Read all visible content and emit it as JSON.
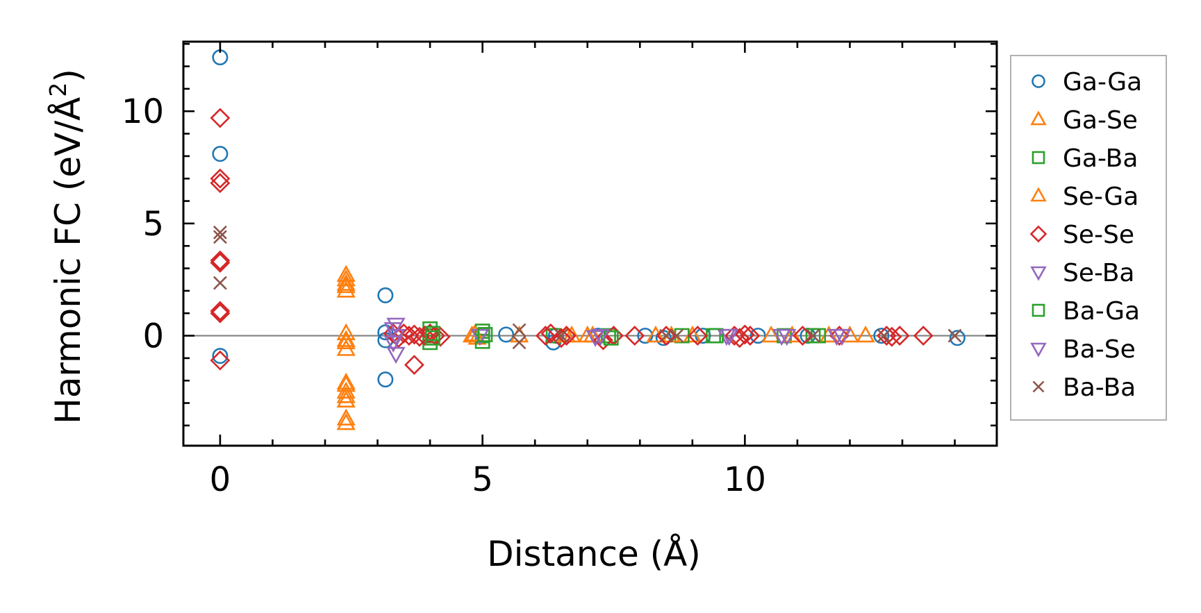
{
  "chart_data": {
    "type": "scatter",
    "title": "",
    "xlabel": "Distance (Å)",
    "ylabel": "Harmonic FC (eV/Å",
    "ylabel_sup": "2",
    "ylabel_close": ")",
    "xlim": [
      -0.7,
      14.8
    ],
    "ylim": [
      -4.9,
      13.1
    ],
    "xticks": [
      0,
      5,
      10
    ],
    "yticks": [
      0,
      5,
      10
    ],
    "x_minor_step": 1,
    "y_minor_step": 1,
    "grid": false,
    "zero_line": true,
    "legend_location": "outside-right",
    "series": [
      {
        "name": "Ga-Ga",
        "marker": "circle",
        "color": "#1f77b4",
        "points": [
          [
            0,
            12.4
          ],
          [
            0,
            8.1
          ],
          [
            0,
            -0.9
          ],
          [
            3.15,
            1.8
          ],
          [
            3.15,
            0.15
          ],
          [
            3.15,
            -0.2
          ],
          [
            3.15,
            -1.95
          ],
          [
            5.45,
            0.05
          ],
          [
            6.35,
            -0.3
          ],
          [
            6.4,
            0.0
          ],
          [
            7.2,
            0.0
          ],
          [
            8.1,
            0.0
          ],
          [
            8.45,
            -0.1
          ],
          [
            9.2,
            0.0
          ],
          [
            10.25,
            0.0
          ],
          [
            11.2,
            0.0
          ],
          [
            12.6,
            0.0
          ],
          [
            14.05,
            -0.1
          ]
        ]
      },
      {
        "name": "Ga-Se",
        "marker": "triangle-up",
        "color": "#ff7f0e",
        "points": [
          [
            2.4,
            2.7
          ],
          [
            2.4,
            2.3
          ],
          [
            2.4,
            2.0
          ],
          [
            2.4,
            0.1
          ],
          [
            2.4,
            -0.3
          ],
          [
            2.4,
            -0.6
          ],
          [
            2.4,
            -2.1
          ],
          [
            2.4,
            -2.5
          ],
          [
            2.4,
            -2.9
          ],
          [
            2.4,
            -3.7
          ],
          [
            2.4,
            -3.9
          ],
          [
            4.8,
            0.0
          ],
          [
            4.9,
            -0.1
          ],
          [
            5.7,
            0.0
          ],
          [
            6.7,
            0.0
          ],
          [
            7.0,
            0.0
          ],
          [
            8.3,
            0.0
          ],
          [
            9.0,
            0.0
          ],
          [
            10.5,
            0.0
          ],
          [
            11.6,
            0.0
          ],
          [
            12.3,
            0.0
          ]
        ]
      },
      {
        "name": "Ga-Ba",
        "marker": "square",
        "color": "#2ca02c",
        "points": [
          [
            4.0,
            0.3
          ],
          [
            4.0,
            0.0
          ],
          [
            4.0,
            -0.3
          ],
          [
            5.0,
            0.2
          ],
          [
            5.0,
            0.0
          ],
          [
            5.0,
            -0.25
          ],
          [
            6.35,
            0.0
          ],
          [
            7.4,
            0.0
          ],
          [
            8.8,
            0.0
          ],
          [
            9.4,
            0.0
          ],
          [
            10.75,
            0.0
          ],
          [
            11.3,
            0.0
          ]
        ]
      },
      {
        "name": "Se-Ga",
        "marker": "triangle-up",
        "color": "#ff7f0e",
        "points": [
          [
            2.4,
            2.5
          ],
          [
            2.4,
            2.2
          ],
          [
            2.4,
            -0.2
          ],
          [
            2.4,
            -2.2
          ],
          [
            2.4,
            -2.7
          ],
          [
            4.85,
            0.05
          ],
          [
            6.6,
            0.0
          ],
          [
            7.1,
            0.0
          ],
          [
            8.6,
            0.0
          ],
          [
            10.9,
            0.0
          ],
          [
            12.0,
            0.0
          ]
        ]
      },
      {
        "name": "Se-Se",
        "marker": "diamond",
        "color": "#d62728",
        "points": [
          [
            0,
            9.7
          ],
          [
            0,
            7.0
          ],
          [
            0,
            6.8
          ],
          [
            0,
            3.35
          ],
          [
            0,
            3.25
          ],
          [
            0,
            1.1
          ],
          [
            0,
            1.0
          ],
          [
            0,
            -1.1
          ],
          [
            3.3,
            0.1
          ],
          [
            3.4,
            -0.1
          ],
          [
            3.5,
            0.1
          ],
          [
            3.6,
            0.0
          ],
          [
            3.7,
            0.05
          ],
          [
            3.8,
            -0.05
          ],
          [
            3.9,
            0.0
          ],
          [
            4.0,
            0.1
          ],
          [
            4.1,
            0.0
          ],
          [
            4.2,
            -0.05
          ],
          [
            3.7,
            -1.3
          ],
          [
            6.2,
            0.0
          ],
          [
            6.3,
            0.1
          ],
          [
            6.5,
            -0.1
          ],
          [
            6.6,
            0.0
          ],
          [
            7.3,
            -0.2
          ],
          [
            7.5,
            0.0
          ],
          [
            7.9,
            0.0
          ],
          [
            8.5,
            0.0
          ],
          [
            9.1,
            0.0
          ],
          [
            9.8,
            0.0
          ],
          [
            9.9,
            -0.1
          ],
          [
            10.0,
            0.05
          ],
          [
            10.1,
            0.0
          ],
          [
            11.1,
            0.0
          ],
          [
            11.8,
            0.0
          ],
          [
            12.7,
            0.0
          ],
          [
            12.8,
            -0.05
          ],
          [
            12.95,
            0.0
          ],
          [
            13.4,
            0.0
          ]
        ]
      },
      {
        "name": "Se-Ba",
        "marker": "triangle-down",
        "color": "#9467bd",
        "points": [
          [
            3.35,
            0.5
          ],
          [
            3.35,
            0.0
          ],
          [
            3.35,
            -0.8
          ],
          [
            4.95,
            0.0
          ],
          [
            7.15,
            -0.05
          ],
          [
            9.65,
            0.0
          ],
          [
            10.7,
            0.0
          ],
          [
            11.85,
            0.0
          ]
        ]
      },
      {
        "name": "Ba-Ga",
        "marker": "square",
        "color": "#2ca02c",
        "points": [
          [
            4.05,
            0.1
          ],
          [
            4.05,
            -0.1
          ],
          [
            5.05,
            0.05
          ],
          [
            7.45,
            -0.1
          ],
          [
            9.45,
            0.0
          ],
          [
            11.4,
            0.0
          ]
        ]
      },
      {
        "name": "Ba-Se",
        "marker": "triangle-down",
        "color": "#9467bd",
        "points": [
          [
            3.3,
            0.3
          ],
          [
            3.3,
            -0.3
          ],
          [
            7.25,
            0.0
          ],
          [
            9.7,
            0.0
          ],
          [
            10.8,
            0.0
          ],
          [
            11.75,
            0.0
          ]
        ]
      },
      {
        "name": "Ba-Ba",
        "marker": "x",
        "color": "#8c564b",
        "points": [
          [
            0,
            4.6
          ],
          [
            0,
            4.4
          ],
          [
            0,
            2.35
          ],
          [
            5.7,
            0.25
          ],
          [
            5.7,
            -0.3
          ],
          [
            6.5,
            0.0
          ],
          [
            8.5,
            0.0
          ],
          [
            8.7,
            0.0
          ],
          [
            11.3,
            0.0
          ],
          [
            12.65,
            0.0
          ],
          [
            14.0,
            0.0
          ]
        ]
      }
    ]
  }
}
